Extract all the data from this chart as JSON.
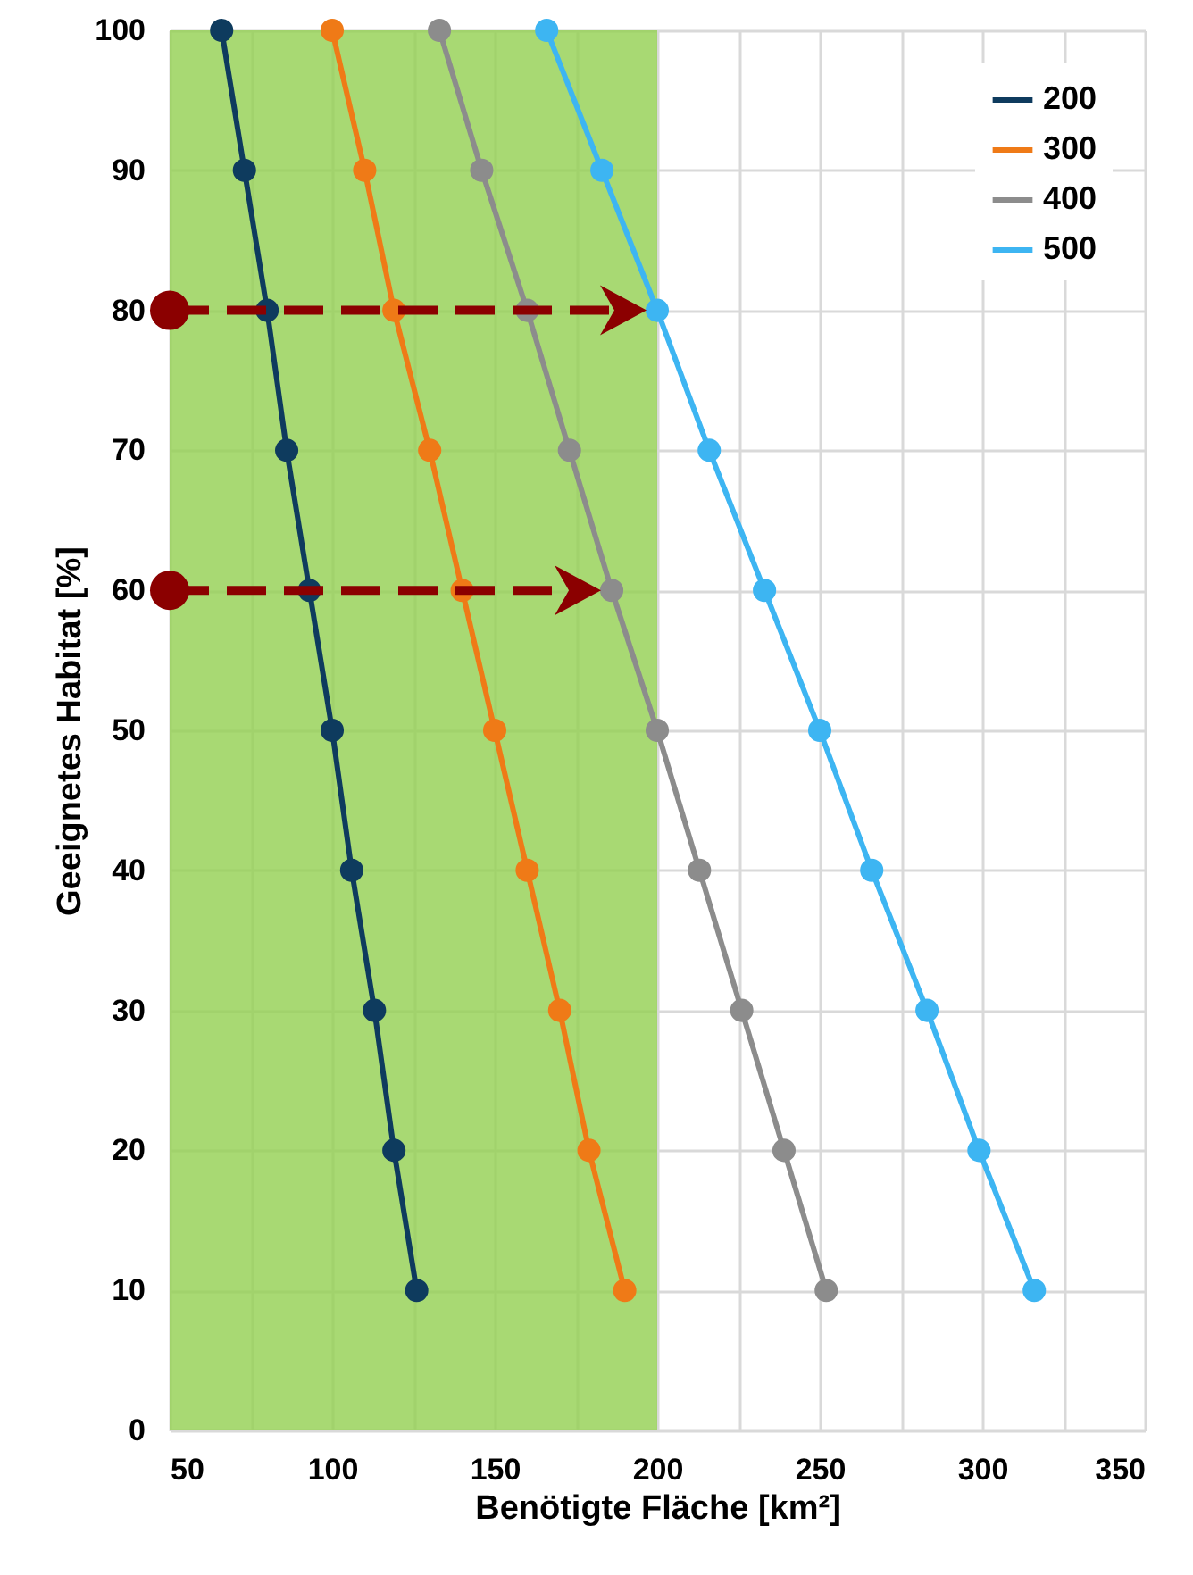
{
  "chart_data": {
    "type": "line",
    "xlabel": "Benötigte Fläche [km²]",
    "ylabel": "Geeignetes Habitat [%]",
    "xlim": [
      50,
      350
    ],
    "xticks": [
      50,
      {
        "value": 75,
        "label": null
      },
      100,
      {
        "value": 125,
        "label": null
      },
      150,
      {
        "value": 175,
        "label": null
      },
      200,
      {
        "value": 225,
        "label": null
      },
      250,
      {
        "value": 275,
        "label": null
      },
      300,
      {
        "value": 325,
        "label": null
      },
      350
    ],
    "ylim": [
      0,
      100
    ],
    "yticks": [
      0,
      10,
      20,
      30,
      40,
      50,
      60,
      70,
      80,
      90,
      100
    ],
    "grid": true,
    "legend": "top right",
    "marker": "circle",
    "series": [
      {
        "name": "200",
        "color": "#0e3b5e",
        "x": [
          66,
          73,
          80,
          86,
          93,
          100,
          106,
          113,
          119,
          126
        ],
        "values": [
          100,
          90,
          80,
          70,
          60,
          50,
          40,
          30,
          20,
          10
        ]
      },
      {
        "name": "300",
        "color": "#ef7a17",
        "x": [
          100,
          110,
          119,
          130,
          140,
          150,
          160,
          170,
          179,
          190
        ],
        "values": [
          100,
          90,
          80,
          70,
          60,
          50,
          40,
          30,
          20,
          10
        ]
      },
      {
        "name": "400",
        "color": "#8c8c8c",
        "x": [
          133,
          146,
          160,
          173,
          186,
          200,
          213,
          226,
          239,
          252
        ],
        "values": [
          100,
          90,
          80,
          70,
          60,
          50,
          40,
          30,
          20,
          10
        ]
      },
      {
        "name": "500",
        "color": "#3db5f2",
        "x": [
          166,
          183,
          200,
          216,
          233,
          250,
          266,
          283,
          299,
          316
        ],
        "values": [
          100,
          90,
          80,
          70,
          60,
          50,
          40,
          30,
          20,
          10
        ]
      }
    ],
    "bands": [
      {
        "axis": "x",
        "from": 50,
        "to": 200,
        "color": "#92d050"
      }
    ],
    "ref_lines": [
      {
        "axis": "y",
        "value": 80,
        "color": "#8b0000",
        "line_style": "dashed"
      },
      {
        "axis": "y",
        "value": 60,
        "color": "#8b0000",
        "line_style": "dashed"
      }
    ]
  }
}
